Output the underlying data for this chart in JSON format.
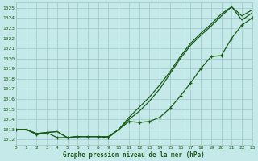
{
  "title": "Graphe pression niveau de la mer (hPa)",
  "x_labels": [
    0,
    1,
    2,
    3,
    4,
    5,
    6,
    7,
    8,
    9,
    10,
    11,
    12,
    13,
    14,
    15,
    16,
    17,
    18,
    19,
    20,
    21,
    22,
    23
  ],
  "xlim": [
    0,
    23
  ],
  "ylim": [
    1011.5,
    1025.5
  ],
  "yticks": [
    1012,
    1013,
    1014,
    1015,
    1016,
    1017,
    1018,
    1019,
    1020,
    1021,
    1022,
    1023,
    1024,
    1025
  ],
  "background_color": "#c5e8e8",
  "grid_color": "#9ec8c8",
  "line_color": "#1a5c1a",
  "line1": [
    1013.0,
    1013.0,
    1012.6,
    1012.7,
    1012.8,
    1012.2,
    1012.3,
    1012.3,
    1012.3,
    1012.3,
    1013.0,
    1014.2,
    1015.2,
    1016.2,
    1017.4,
    1018.7,
    1020.2,
    1021.5,
    1022.5,
    1023.4,
    1024.4,
    1025.1,
    1024.2,
    1024.8
  ],
  "line2": [
    1013.0,
    1013.0,
    1012.6,
    1012.7,
    1012.8,
    1012.2,
    1012.3,
    1012.3,
    1012.3,
    1012.3,
    1013.0,
    1014.0,
    1014.8,
    1015.8,
    1017.0,
    1018.5,
    1020.0,
    1021.3,
    1022.3,
    1023.2,
    1024.2,
    1025.1,
    1023.8,
    1024.5
  ],
  "line3": [
    1013.0,
    1013.0,
    1012.5,
    1012.7,
    1012.2,
    1012.2,
    1012.3,
    1012.3,
    1012.3,
    1012.2,
    1013.0,
    1013.8,
    1013.7,
    1013.8,
    1014.2,
    1015.1,
    1016.3,
    1017.6,
    1019.0,
    1020.2,
    1020.3,
    1022.0,
    1023.3,
    1024.0
  ],
  "font_color": "#1a5c1a",
  "font_family": "monospace",
  "label_fontsize": 4.5,
  "xlabel_fontsize": 5.5
}
